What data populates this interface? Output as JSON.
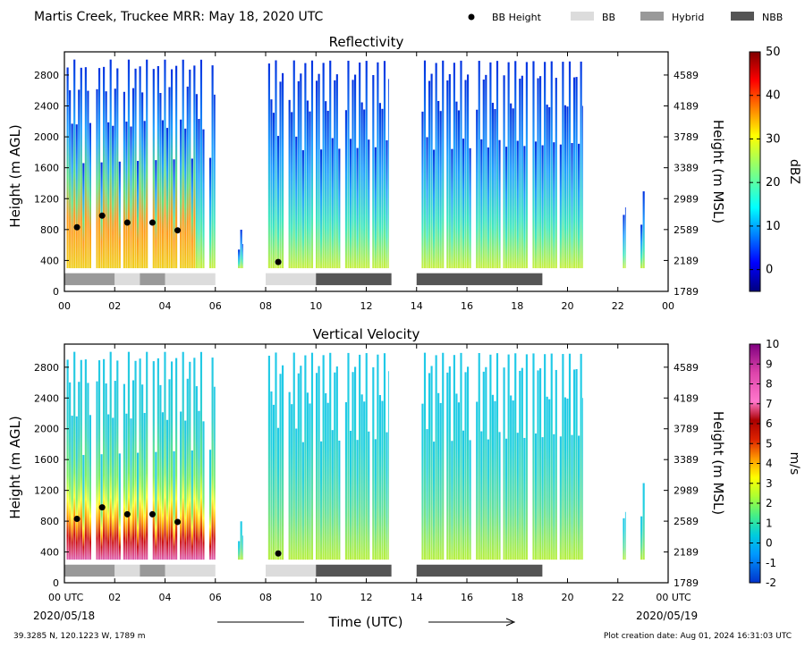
{
  "header": {
    "title": "Martis Creek, Truckee MRR:  May 18, 2020 UTC",
    "legend": [
      {
        "label": "BB Height",
        "kind": "dot",
        "color": "#000000"
      },
      {
        "label": "BB",
        "kind": "box",
        "color": "#dcdcdc"
      },
      {
        "label": "Hybrid",
        "kind": "box",
        "color": "#999999"
      },
      {
        "label": "NBB",
        "kind": "box",
        "color": "#555555"
      }
    ]
  },
  "footer": {
    "location": "39.3285 N, 120.1223 W, 1789 m",
    "creation": "Plot creation date: Aug 01, 2024 16:31:03 UTC",
    "xlabel": "Time (UTC)",
    "start_tick": "00 UTC",
    "start_date": "2020/05/18",
    "end_tick": "00 UTC",
    "end_date": "2020/05/19"
  },
  "chart_data": [
    {
      "type": "heatmap",
      "title": "Reflectivity",
      "ylabel": "Height (m AGL)",
      "ylabel_right": "Height (m MSL)",
      "colorbar_label": "dBZ",
      "x_range": [
        0,
        24
      ],
      "y_range": [
        0,
        3100
      ],
      "xticks": [
        "00",
        "02",
        "04",
        "06",
        "08",
        "10",
        "12",
        "14",
        "16",
        "18",
        "20",
        "22",
        "00"
      ],
      "yticks": [
        0,
        400,
        800,
        1200,
        1600,
        2000,
        2400,
        2800
      ],
      "yticks_msl": [
        "1789",
        "2189",
        "2589",
        "2989",
        "3389",
        "3789",
        "4189",
        "4589"
      ],
      "colorbar_ticks": [
        0,
        10,
        20,
        30,
        40,
        50
      ],
      "colorbar_range": [
        -5,
        50
      ],
      "bb_height_points": [
        {
          "time": 0.5,
          "height": 830
        },
        {
          "time": 1.5,
          "height": 980
        },
        {
          "time": 2.5,
          "height": 890
        },
        {
          "time": 3.5,
          "height": 890
        },
        {
          "time": 4.5,
          "height": 790
        },
        {
          "time": 8.5,
          "height": 380
        }
      ],
      "bb_segments": [
        {
          "start": 0,
          "end": 2,
          "class": "Hybrid"
        },
        {
          "start": 2,
          "end": 3,
          "class": "BB"
        },
        {
          "start": 3,
          "end": 4,
          "class": "Hybrid"
        },
        {
          "start": 4,
          "end": 6,
          "class": "BB"
        },
        {
          "start": 8,
          "end": 10,
          "class": "BB"
        },
        {
          "start": 10,
          "end": 13,
          "class": "NBB"
        },
        {
          "start": 14,
          "end": 19,
          "class": "NBB"
        }
      ],
      "data_periods": [
        {
          "start": 0,
          "end": 6.0,
          "top": 3000
        },
        {
          "start": 6.9,
          "end": 7.1,
          "top": 800
        },
        {
          "start": 8.1,
          "end": 12.9,
          "top": 3000
        },
        {
          "start": 14.2,
          "end": 20.6,
          "top": 3000
        },
        {
          "start": 22.2,
          "end": 22.3,
          "top": 1300
        },
        {
          "start": 22.9,
          "end": 23.1,
          "top": 1300
        }
      ]
    },
    {
      "type": "heatmap",
      "title": "Vertical Velocity",
      "ylabel": "Height (m AGL)",
      "ylabel_right": "Height (m MSL)",
      "colorbar_label": "m/s",
      "x_range": [
        0,
        24
      ],
      "y_range": [
        0,
        3100
      ],
      "xticks": [
        "00",
        "02",
        "04",
        "06",
        "08",
        "10",
        "12",
        "14",
        "16",
        "18",
        "20",
        "22",
        "00"
      ],
      "yticks": [
        0,
        400,
        800,
        1200,
        1600,
        2000,
        2400,
        2800
      ],
      "yticks_msl": [
        "1789",
        "2189",
        "2589",
        "2989",
        "3389",
        "3789",
        "4189",
        "4589"
      ],
      "colorbar_ticks": [
        10,
        9,
        8,
        7,
        6,
        5,
        4,
        3,
        2,
        1,
        0,
        -1,
        -2
      ],
      "colorbar_range": [
        -2,
        10
      ],
      "bb_height_points": [
        {
          "time": 0.5,
          "height": 830
        },
        {
          "time": 1.5,
          "height": 980
        },
        {
          "time": 2.5,
          "height": 890
        },
        {
          "time": 3.5,
          "height": 890
        },
        {
          "time": 4.5,
          "height": 790
        },
        {
          "time": 8.5,
          "height": 380
        }
      ],
      "bb_segments": [
        {
          "start": 0,
          "end": 2,
          "class": "Hybrid"
        },
        {
          "start": 2,
          "end": 3,
          "class": "BB"
        },
        {
          "start": 3,
          "end": 4,
          "class": "Hybrid"
        },
        {
          "start": 4,
          "end": 6,
          "class": "BB"
        },
        {
          "start": 8,
          "end": 10,
          "class": "BB"
        },
        {
          "start": 10,
          "end": 13,
          "class": "NBB"
        },
        {
          "start": 14,
          "end": 19,
          "class": "NBB"
        }
      ],
      "data_periods": [
        {
          "start": 0,
          "end": 6.0,
          "top": 3000
        },
        {
          "start": 6.9,
          "end": 7.1,
          "top": 800
        },
        {
          "start": 8.1,
          "end": 12.9,
          "top": 3000
        },
        {
          "start": 14.2,
          "end": 20.6,
          "top": 3000
        },
        {
          "start": 22.2,
          "end": 22.3,
          "top": 1100
        },
        {
          "start": 22.9,
          "end": 23.1,
          "top": 1300
        }
      ]
    }
  ]
}
